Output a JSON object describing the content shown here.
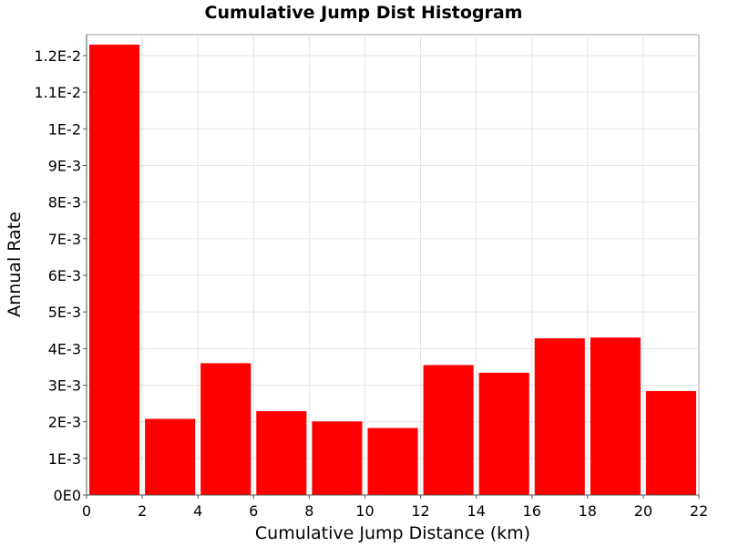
{
  "chart_data": {
    "type": "bar",
    "title": "Cumulative Jump Dist Histogram",
    "xlabel": "Cumulative Jump Distance (km)",
    "ylabel": "Annual Rate",
    "xlim": [
      0,
      22
    ],
    "ylim": [
      0,
      0.0129
    ],
    "grid": true,
    "x_ticks": [
      "0",
      "2",
      "4",
      "6",
      "8",
      "10",
      "12",
      "14",
      "16",
      "18",
      "20",
      "22"
    ],
    "y_ticks": [
      "0E0",
      "1E-3",
      "2E-3",
      "3E-3",
      "4E-3",
      "5E-3",
      "6E-3",
      "7E-3",
      "8E-3",
      "9E-3",
      "1E-2",
      "1.1E-2",
      "1.2E-2"
    ],
    "bin_width": 2,
    "bin_centers": [
      1,
      3,
      5,
      7,
      9,
      11,
      13,
      15,
      17,
      19,
      21
    ],
    "values": [
      0.0123,
      0.00208,
      0.0036,
      0.00229,
      0.00201,
      0.00183,
      0.00355,
      0.00334,
      0.00428,
      0.0043,
      0.00284
    ],
    "bar_color": "#ff0000"
  }
}
